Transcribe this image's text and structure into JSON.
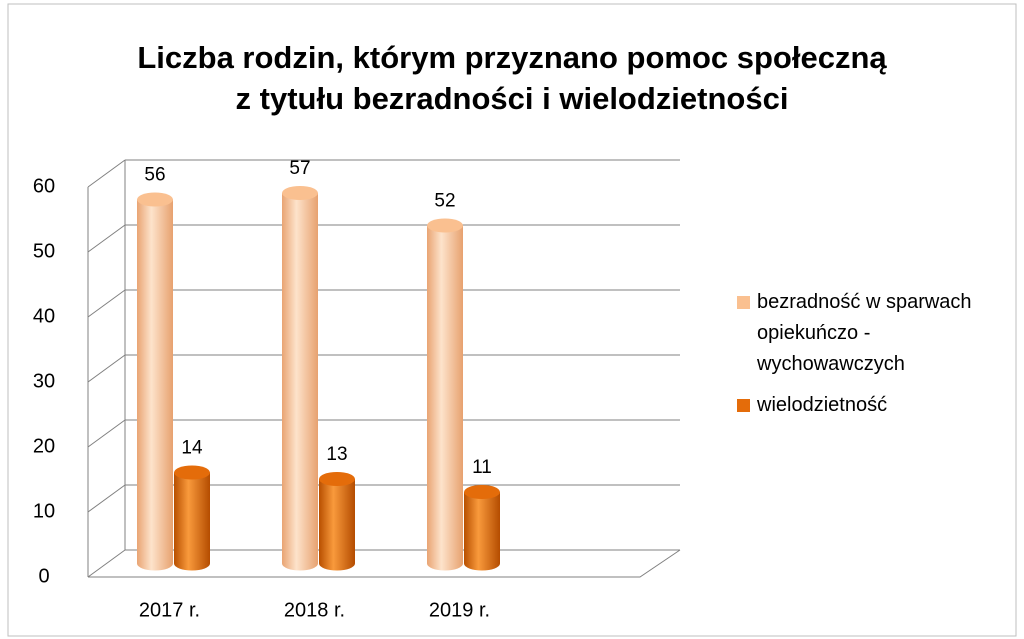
{
  "chart_data": {
    "type": "bar",
    "title": [
      "Liczba rodzin, którym przyznano pomoc społeczną",
      "z tytułu bezradności i wielodzietności"
    ],
    "categories": [
      "2017 r.",
      "2018 r.",
      "2019 r."
    ],
    "series": [
      {
        "name": "bezradność w sparwach opiekuńczo - wychowawczych",
        "color": "#fac090",
        "values": [
          56,
          57,
          52
        ]
      },
      {
        "name": "wielodzietność",
        "color": "#e46c0a",
        "values": [
          14,
          13,
          11
        ]
      }
    ],
    "ylim": [
      0,
      60
    ],
    "yticks": [
      0,
      10,
      20,
      30,
      40,
      50,
      60
    ],
    "grid": true,
    "legend": "right"
  }
}
